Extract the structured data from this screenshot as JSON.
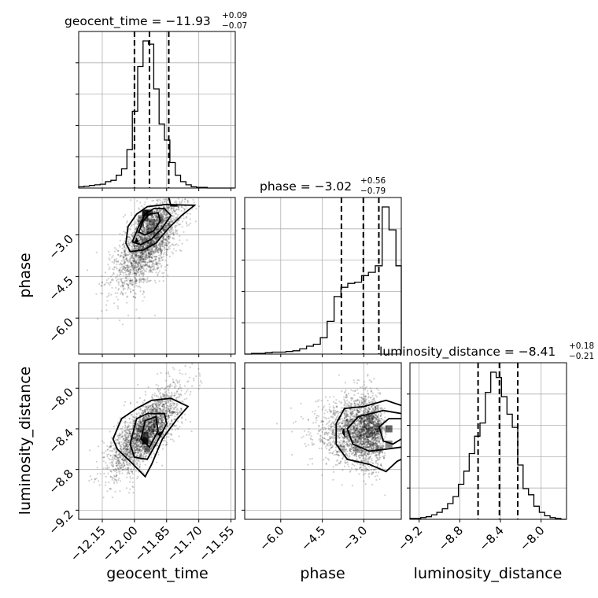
{
  "chart_data": {
    "type": "corner",
    "parameters": [
      "geocent_time",
      "phase",
      "luminosity_distance"
    ],
    "axis_labels": [
      "geocent_time",
      "phase",
      "luminosity_distance"
    ],
    "ranges": {
      "geocent_time": [
        -12.26,
        -11.53
      ],
      "phase": [
        -7.3,
        -1.65
      ],
      "luminosity_distance": [
        -9.29,
        -7.75
      ]
    },
    "ticks": {
      "geocent_time": [
        -12.15,
        -12.0,
        -11.85,
        -11.7,
        -11.55
      ],
      "geocent_time_labels": [
        "−12.15",
        "−12.00",
        "−11.85",
        "−11.70",
        "−11.55"
      ],
      "phase": [
        -6.0,
        -4.5,
        -3.0
      ],
      "phase_labels": [
        "−6.0",
        "−4.5",
        "−3.0"
      ],
      "luminosity_distance": [
        -9.2,
        -8.8,
        -8.4,
        -8.0
      ],
      "luminosity_distance_labels": [
        "−9.2",
        "−8.8",
        "−8.4",
        "−8.0"
      ]
    },
    "titles": [
      {
        "param": "geocent_time",
        "main": "geocent_time = −11.93",
        "sup": "+0.09",
        "sub": "−0.07"
      },
      {
        "param": "phase",
        "main": "phase = −3.02",
        "sup": "+0.56",
        "sub": "−0.79"
      },
      {
        "param": "luminosity_distance",
        "main": "luminosity_distance = −8.41",
        "sup": "+0.18",
        "sub": "−0.21"
      }
    ],
    "quantiles": {
      "geocent_time": [
        -12.0,
        -11.93,
        -11.84
      ],
      "phase": [
        -3.81,
        -3.02,
        -2.46
      ],
      "luminosity_distance": [
        -8.62,
        -8.41,
        -8.23
      ]
    },
    "histograms": {
      "geocent_time": {
        "edges": [
          -12.26,
          -12.235,
          -12.21,
          -12.185,
          -12.16,
          -12.135,
          -12.11,
          -12.085,
          -12.06,
          -12.035,
          -12.01,
          -11.985,
          -11.96,
          -11.935,
          -11.91,
          -11.885,
          -11.86,
          -11.835,
          -11.81,
          -11.785,
          -11.76,
          -11.735,
          -11.71,
          -11.685,
          -11.66,
          -11.635,
          -11.61,
          -11.585,
          -11.56,
          -11.535
        ],
        "counts": [
          2,
          3,
          4,
          5,
          6,
          10,
          12,
          20,
          30,
          60,
          120,
          190,
          230,
          225,
          155,
          100,
          75,
          40,
          20,
          10,
          5,
          2,
          1,
          1,
          0,
          0,
          0,
          0,
          0
        ]
      },
      "phase": {
        "edges": [
          -7.3,
          -7.052,
          -6.804,
          -6.556,
          -6.308,
          -6.06,
          -5.812,
          -5.564,
          -5.316,
          -5.068,
          -4.82,
          -4.572,
          -4.324,
          -4.076,
          -3.828,
          -3.58,
          -3.332,
          -3.084,
          -2.836,
          -2.588,
          -2.34,
          -2.092,
          -1.844,
          -1.65
        ],
        "counts": [
          0,
          1,
          1,
          2,
          3,
          3,
          4,
          5,
          8,
          12,
          15,
          25,
          50,
          88,
          102,
          108,
          110,
          120,
          125,
          135,
          225,
          190,
          135
        ]
      },
      "luminosity_distance": {
        "edges": [
          -9.29,
          -9.237,
          -9.184,
          -9.131,
          -9.078,
          -9.025,
          -8.972,
          -8.919,
          -8.866,
          -8.813,
          -8.76,
          -8.707,
          -8.654,
          -8.601,
          -8.548,
          -8.495,
          -8.442,
          -8.389,
          -8.336,
          -8.283,
          -8.23,
          -8.177,
          -8.124,
          -8.071,
          -8.018,
          -7.965,
          -7.912,
          -7.859,
          -7.806,
          -7.75
        ],
        "counts": [
          1,
          1,
          2,
          3,
          5,
          8,
          12,
          18,
          26,
          40,
          55,
          75,
          95,
          110,
          145,
          168,
          162,
          140,
          120,
          105,
          62,
          35,
          28,
          15,
          8,
          4,
          2,
          1,
          0
        ]
      }
    },
    "contour_levels": 4,
    "grid": true
  }
}
